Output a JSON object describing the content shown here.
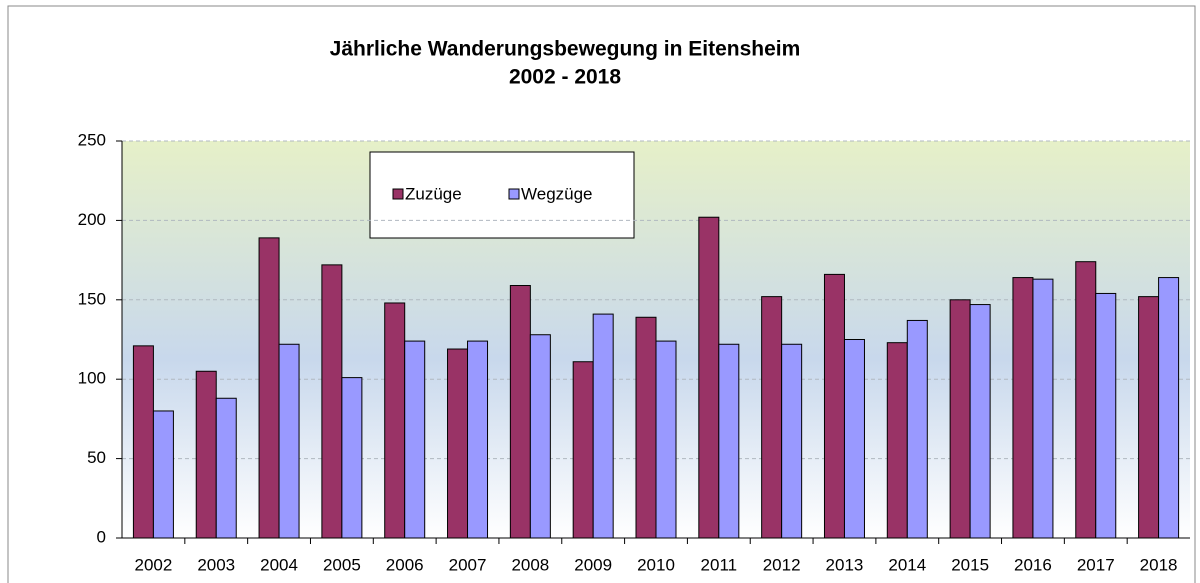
{
  "chart_data": {
    "type": "bar",
    "title_lines": [
      "Jährliche Wanderungsbewegung in Eitensheim",
      "2002 - 2018"
    ],
    "categories": [
      "2002",
      "2003",
      "2004",
      "2005",
      "2006",
      "2007",
      "2008",
      "2009",
      "2010",
      "2011",
      "2012",
      "2013",
      "2014",
      "2015",
      "2016",
      "2017",
      "2018"
    ],
    "series": [
      {
        "name": "Zuzüge",
        "color": "#993366",
        "values": [
          121,
          105,
          189,
          172,
          148,
          119,
          159,
          111,
          139,
          202,
          152,
          166,
          123,
          150,
          164,
          174,
          152
        ]
      },
      {
        "name": "Wegzüge",
        "color": "#9999ff",
        "values": [
          80,
          88,
          122,
          101,
          124,
          124,
          128,
          141,
          124,
          122,
          122,
          125,
          137,
          147,
          163,
          154,
          164
        ]
      }
    ],
    "ylim": [
      0,
      250
    ],
    "yticks": [
      0,
      50,
      100,
      150,
      200,
      250
    ],
    "grid": true
  }
}
